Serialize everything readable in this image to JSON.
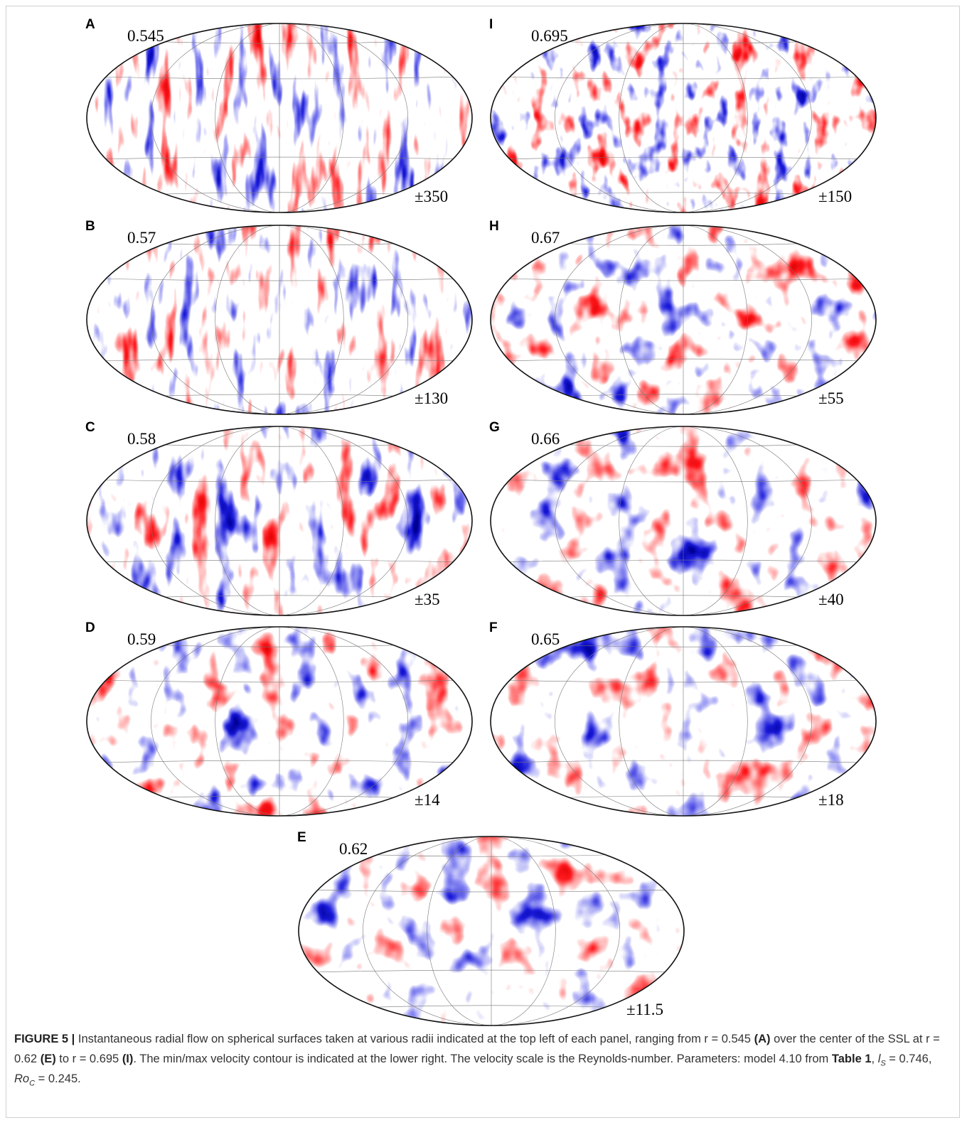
{
  "panels": [
    {
      "letter": "A",
      "radius": "0.545",
      "scale": "±350"
    },
    {
      "letter": "B",
      "radius": "0.57",
      "scale": "±130"
    },
    {
      "letter": "C",
      "radius": "0.58",
      "scale": "±35"
    },
    {
      "letter": "D",
      "radius": "0.59",
      "scale": "±14"
    },
    {
      "letter": "E",
      "radius": "0.62",
      "scale": "±11.5"
    },
    {
      "letter": "F",
      "radius": "0.65",
      "scale": "±18"
    },
    {
      "letter": "G",
      "radius": "0.66",
      "scale": "±40"
    },
    {
      "letter": "H",
      "radius": "0.67",
      "scale": "±55"
    },
    {
      "letter": "I",
      "radius": "0.695",
      "scale": "±150"
    }
  ],
  "caption": {
    "label": "FIGURE 5 |",
    "parts": [
      " Instantaneous radial flow on spherical surfaces taken at various radii indicated at the top left of each panel, ranging from r = 0.545 ",
      "(A)",
      " over the center of the SSL at r = 0.62 ",
      "(E)",
      " to r = 0.695 ",
      "(I)",
      ". The min/max velocity contour is indicated at the lower right. The velocity scale is the Reynolds-number. Parameters: model 4.10 from ",
      "Table 1",
      ", ",
      "l",
      "S",
      " = 0.746, ",
      "Ro",
      "C",
      " = 0.245."
    ]
  }
}
